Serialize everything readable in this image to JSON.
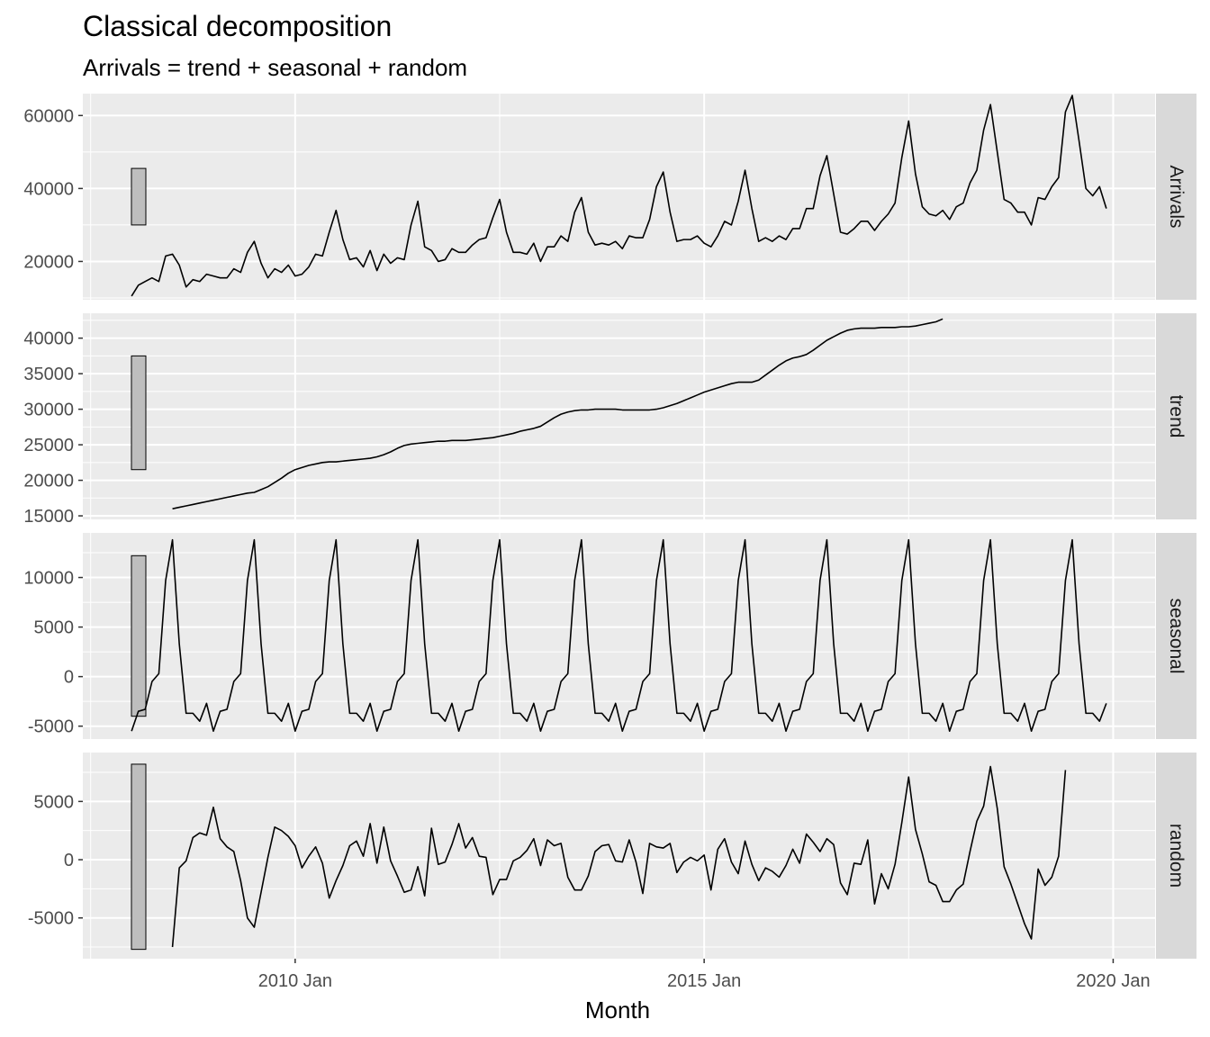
{
  "chart_data": {
    "type": "line",
    "title": "Classical decomposition",
    "subtitle": "Arrivals = trend + seasonal + random",
    "xlabel": "Month",
    "x_start": "2008-01",
    "x_end": "2019-12",
    "x_ticks": [
      {
        "date": "2010-01",
        "label": "2010 Jan"
      },
      {
        "date": "2015-01",
        "label": "2015 Jan"
      },
      {
        "date": "2020-01",
        "label": "2020 Jan"
      }
    ],
    "panels": [
      {
        "name": "Arrivals",
        "ylim": [
          9500,
          66000
        ],
        "yticks": [
          20000,
          40000,
          60000
        ],
        "scale_bar": [
          30000,
          45500
        ],
        "start": "2008-01",
        "values": [
          10500,
          13500,
          14500,
          15500,
          14500,
          21500,
          22000,
          19000,
          13000,
          15000,
          14500,
          16500,
          16000,
          15500,
          15500,
          18000,
          17000,
          22500,
          25500,
          19500,
          15500,
          18000,
          17000,
          19000,
          16000,
          16500,
          18500,
          22000,
          21500,
          28000,
          34000,
          26000,
          20500,
          21000,
          18500,
          23000,
          17500,
          22000,
          19500,
          21000,
          20500,
          30000,
          36500,
          24000,
          23000,
          20000,
          20500,
          23500,
          22500,
          22500,
          24500,
          26000,
          26500,
          32000,
          37000,
          28000,
          22500,
          22500,
          22000,
          25000,
          20000,
          24000,
          24000,
          27000,
          25500,
          33500,
          37500,
          28000,
          24500,
          25000,
          24500,
          25500,
          23500,
          27000,
          26500,
          26500,
          31500,
          40500,
          44500,
          33500,
          25500,
          26000,
          26000,
          27000,
          25000,
          24000,
          27000,
          31000,
          30000,
          36500,
          45000,
          34500,
          25500,
          26500,
          25500,
          27000,
          26000,
          29000,
          29000,
          34500,
          34500,
          43500,
          49000,
          38500,
          28000,
          27500,
          29000,
          31000,
          31000,
          28500,
          31000,
          33000,
          36000,
          48500,
          58500,
          44000,
          35000,
          33000,
          32500,
          34000,
          31500,
          35000,
          36000,
          41500,
          45000,
          56000,
          63000,
          50000,
          37000,
          36000,
          33500,
          33500,
          30000,
          37500,
          37000,
          40500,
          43000,
          61000,
          65500,
          53000,
          40000,
          38000,
          40500,
          34500
        ]
      },
      {
        "name": "trend",
        "ylim": [
          14500,
          43500
        ],
        "yticks": [
          15000,
          20000,
          25000,
          30000,
          35000,
          40000
        ],
        "scale_bar": [
          21500,
          37500
        ],
        "start": "2008-07",
        "values": [
          16000,
          16200,
          16400,
          16600,
          16800,
          17000,
          17200,
          17400,
          17600,
          17800,
          18000,
          18200,
          18300,
          18700,
          19100,
          19700,
          20300,
          21000,
          21500,
          21800,
          22100,
          22300,
          22500,
          22600,
          22600,
          22700,
          22800,
          22900,
          23000,
          23100,
          23300,
          23600,
          24000,
          24500,
          24900,
          25100,
          25200,
          25300,
          25400,
          25500,
          25500,
          25600,
          25600,
          25600,
          25700,
          25800,
          25900,
          26000,
          26200,
          26400,
          26600,
          26900,
          27100,
          27300,
          27600,
          28200,
          28800,
          29300,
          29600,
          29800,
          29900,
          29900,
          30000,
          30000,
          30000,
          30000,
          29900,
          29900,
          29900,
          29900,
          29900,
          30000,
          30200,
          30500,
          30800,
          31200,
          31600,
          32000,
          32400,
          32700,
          33000,
          33300,
          33600,
          33800,
          33800,
          33800,
          34100,
          34800,
          35500,
          36200,
          36800,
          37200,
          37400,
          37700,
          38300,
          39000,
          39700,
          40200,
          40700,
          41100,
          41300,
          41400,
          41400,
          41400,
          41500,
          41500,
          41500,
          41600,
          41600,
          41700,
          41900,
          42100,
          42300,
          42700
        ]
      },
      {
        "name": "seasonal",
        "ylim": [
          -6300,
          14500
        ],
        "yticks": [
          -5000,
          0,
          5000,
          10000
        ],
        "scale_bar": [
          -4000,
          12200
        ],
        "start": "2008-01",
        "values": [
          -5500,
          -3500,
          -3300,
          -500,
          300,
          9700,
          13800,
          3300,
          -3700,
          -3700,
          -4500,
          -2700
        ],
        "repeat": 12
      },
      {
        "name": "random",
        "ylim": [
          -8500,
          9200
        ],
        "yticks": [
          -5000,
          0,
          5000
        ],
        "scale_bar": [
          -7700,
          8200
        ],
        "start": "2008-07",
        "values": [
          -7500,
          -700,
          -100,
          1900,
          2300,
          2100,
          4500,
          1800,
          1100,
          700,
          -1800,
          -5000,
          -5800,
          -2800,
          200,
          2800,
          2500,
          2000,
          1200,
          -700,
          300,
          1100,
          -300,
          -3300,
          -1800,
          -500,
          1200,
          1600,
          300,
          3100,
          -300,
          2800,
          -100,
          -1400,
          -2800,
          -2600,
          -600,
          -3100,
          2700,
          -400,
          -200,
          1300,
          3100,
          1000,
          1900,
          300,
          200,
          -3000,
          -1700,
          -1700,
          -100,
          200,
          800,
          1800,
          -500,
          1700,
          1200,
          1400,
          -1500,
          -2600,
          -2600,
          -1400,
          700,
          1200,
          1300,
          -100,
          -200,
          1700,
          -200,
          -2900,
          1400,
          1100,
          1000,
          1400,
          -1100,
          -200,
          200,
          -100,
          400,
          -2600,
          900,
          1800,
          -200,
          -1200,
          1600,
          -400,
          -1800,
          -700,
          -1000,
          -1500,
          -500,
          900,
          -300,
          2200,
          1500,
          700,
          1800,
          1300,
          -2000,
          -3000,
          -300,
          -400,
          1700,
          -3800,
          -1200,
          -2500,
          -400,
          3200,
          7100,
          2600,
          500,
          -1900,
          -2200,
          -3600,
          -3600,
          -2600,
          -2100,
          700,
          3300,
          4600,
          8000,
          4400,
          -600,
          -2100,
          -3800,
          -5500,
          -6800,
          -800,
          -2200,
          -1500,
          300,
          7700
        ]
      }
    ]
  }
}
